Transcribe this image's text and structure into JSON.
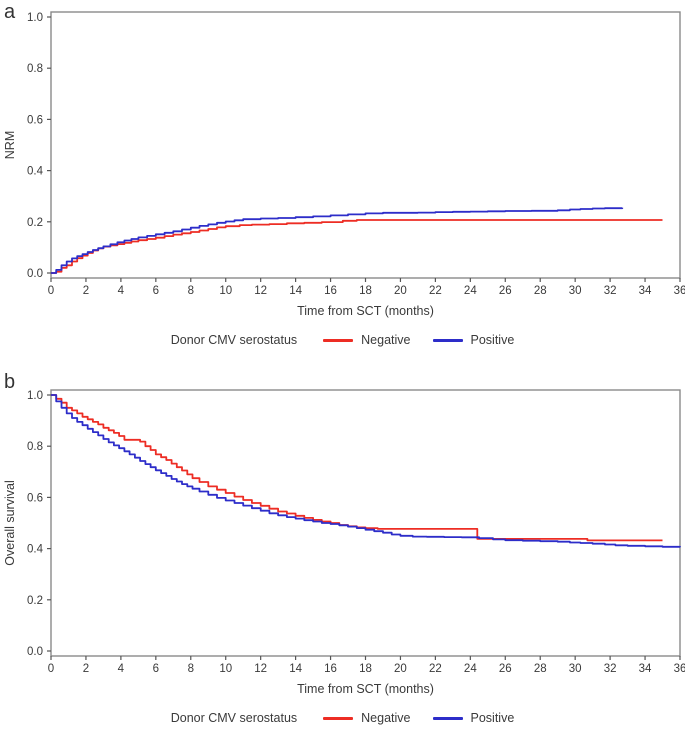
{
  "meta": {
    "background": "#ffffff"
  },
  "chart_data": [
    {
      "panel_label": "a",
      "type": "line",
      "step": true,
      "xlabel": "Time from SCT (months)",
      "ylabel": "NRM",
      "legend_title": "Donor CMV serostatus",
      "legend_position": "bottom",
      "grid": false,
      "xlim": [
        0,
        36
      ],
      "ylim": [
        0.0,
        1.0
      ],
      "xticks": [
        0,
        2,
        4,
        6,
        8,
        10,
        12,
        14,
        16,
        18,
        20,
        22,
        24,
        26,
        28,
        30,
        32,
        34,
        36
      ],
      "yticks": [
        "0.0",
        "0.2",
        "0.4",
        "0.6",
        "0.8",
        "1.0"
      ],
      "series": [
        {
          "name": "Negative",
          "color": "#ed2d24",
          "points": [
            [
              0,
              0
            ],
            [
              0.3,
              0.005
            ],
            [
              0.6,
              0.02
            ],
            [
              0.9,
              0.03
            ],
            [
              1.2,
              0.045
            ],
            [
              1.5,
              0.058
            ],
            [
              1.8,
              0.068
            ],
            [
              2.1,
              0.078
            ],
            [
              2.4,
              0.088
            ],
            [
              2.7,
              0.096
            ],
            [
              3,
              0.103
            ],
            [
              3.4,
              0.108
            ],
            [
              3.8,
              0.113
            ],
            [
              4.2,
              0.118
            ],
            [
              4.6,
              0.123
            ],
            [
              5,
              0.128
            ],
            [
              5.5,
              0.133
            ],
            [
              6,
              0.138
            ],
            [
              6.5,
              0.144
            ],
            [
              7,
              0.15
            ],
            [
              7.5,
              0.155
            ],
            [
              8,
              0.16
            ],
            [
              8.5,
              0.166
            ],
            [
              9,
              0.172
            ],
            [
              9.5,
              0.178
            ],
            [
              10,
              0.183
            ],
            [
              10.8,
              0.187
            ],
            [
              11.5,
              0.189
            ],
            [
              12.5,
              0.191
            ],
            [
              13.5,
              0.194
            ],
            [
              14.5,
              0.196
            ],
            [
              15.5,
              0.199
            ],
            [
              16.7,
              0.204
            ],
            [
              17.5,
              0.207
            ],
            [
              35,
              0.207
            ]
          ]
        },
        {
          "name": "Positive",
          "color": "#2d2dc9",
          "points": [
            [
              0,
              0
            ],
            [
              0.3,
              0.012
            ],
            [
              0.6,
              0.03
            ],
            [
              0.9,
              0.045
            ],
            [
              1.2,
              0.057
            ],
            [
              1.5,
              0.066
            ],
            [
              1.8,
              0.074
            ],
            [
              2.1,
              0.082
            ],
            [
              2.4,
              0.09
            ],
            [
              2.7,
              0.097
            ],
            [
              3,
              0.104
            ],
            [
              3.4,
              0.112
            ],
            [
              3.8,
              0.12
            ],
            [
              4.2,
              0.127
            ],
            [
              4.6,
              0.133
            ],
            [
              5,
              0.139
            ],
            [
              5.5,
              0.145
            ],
            [
              6,
              0.151
            ],
            [
              6.5,
              0.157
            ],
            [
              7,
              0.163
            ],
            [
              7.5,
              0.17
            ],
            [
              8,
              0.177
            ],
            [
              8.5,
              0.184
            ],
            [
              9,
              0.19
            ],
            [
              9.5,
              0.196
            ],
            [
              10,
              0.201
            ],
            [
              10.5,
              0.206
            ],
            [
              11,
              0.21
            ],
            [
              12,
              0.213
            ],
            [
              13,
              0.215
            ],
            [
              14,
              0.218
            ],
            [
              15,
              0.221
            ],
            [
              16,
              0.225
            ],
            [
              17,
              0.229
            ],
            [
              18,
              0.233
            ],
            [
              19,
              0.235
            ],
            [
              21,
              0.236
            ],
            [
              22,
              0.238
            ],
            [
              23,
              0.239
            ],
            [
              24,
              0.24
            ],
            [
              25,
              0.241
            ],
            [
              26,
              0.242
            ],
            [
              27.5,
              0.243
            ],
            [
              29,
              0.245
            ],
            [
              29.7,
              0.248
            ],
            [
              30.3,
              0.25
            ],
            [
              31,
              0.252
            ],
            [
              31.7,
              0.253
            ],
            [
              32.7,
              0.255
            ]
          ]
        }
      ]
    },
    {
      "panel_label": "b",
      "type": "line",
      "step": true,
      "xlabel": "Time from SCT (months)",
      "ylabel": "Overall survival",
      "legend_title": "Donor CMV serostatus",
      "legend_position": "bottom",
      "grid": false,
      "xlim": [
        0,
        36
      ],
      "ylim": [
        0.0,
        1.0
      ],
      "xticks": [
        0,
        2,
        4,
        6,
        8,
        10,
        12,
        14,
        16,
        18,
        20,
        22,
        24,
        26,
        28,
        30,
        32,
        34,
        36
      ],
      "yticks": [
        "0.0",
        "0.2",
        "0.4",
        "0.6",
        "0.8",
        "1.0"
      ],
      "series": [
        {
          "name": "Negative",
          "color": "#ed2d24",
          "points": [
            [
              0,
              1.0
            ],
            [
              0.3,
              0.985
            ],
            [
              0.6,
              0.97
            ],
            [
              0.9,
              0.95
            ],
            [
              1.2,
              0.94
            ],
            [
              1.5,
              0.928
            ],
            [
              1.8,
              0.915
            ],
            [
              2.1,
              0.905
            ],
            [
              2.4,
              0.895
            ],
            [
              2.7,
              0.885
            ],
            [
              3,
              0.872
            ],
            [
              3.3,
              0.862
            ],
            [
              3.6,
              0.852
            ],
            [
              3.9,
              0.84
            ],
            [
              4.2,
              0.825
            ],
            [
              5.1,
              0.818
            ],
            [
              5.4,
              0.8
            ],
            [
              5.7,
              0.785
            ],
            [
              6,
              0.768
            ],
            [
              6.3,
              0.757
            ],
            [
              6.6,
              0.746
            ],
            [
              6.9,
              0.732
            ],
            [
              7.2,
              0.718
            ],
            [
              7.5,
              0.705
            ],
            [
              7.8,
              0.69
            ],
            [
              8.1,
              0.675
            ],
            [
              8.5,
              0.66
            ],
            [
              9,
              0.643
            ],
            [
              9.5,
              0.63
            ],
            [
              10,
              0.617
            ],
            [
              10.5,
              0.603
            ],
            [
              11,
              0.59
            ],
            [
              11.5,
              0.578
            ],
            [
              12,
              0.567
            ],
            [
              12.5,
              0.556
            ],
            [
              13,
              0.545
            ],
            [
              13.5,
              0.537
            ],
            [
              14,
              0.528
            ],
            [
              14.5,
              0.52
            ],
            [
              15,
              0.512
            ],
            [
              15.5,
              0.506
            ],
            [
              16,
              0.5
            ],
            [
              16.5,
              0.492
            ],
            [
              17,
              0.487
            ],
            [
              17.5,
              0.483
            ],
            [
              18,
              0.48
            ],
            [
              18.7,
              0.477
            ],
            [
              24.2,
              0.477
            ],
            [
              24.4,
              0.438
            ],
            [
              30.5,
              0.438
            ],
            [
              30.7,
              0.432
            ],
            [
              35,
              0.432
            ]
          ]
        },
        {
          "name": "Positive",
          "color": "#2d2dc9",
          "points": [
            [
              0,
              1.0
            ],
            [
              0.3,
              0.975
            ],
            [
              0.6,
              0.95
            ],
            [
              0.9,
              0.928
            ],
            [
              1.2,
              0.91
            ],
            [
              1.5,
              0.895
            ],
            [
              1.8,
              0.882
            ],
            [
              2.1,
              0.868
            ],
            [
              2.4,
              0.855
            ],
            [
              2.7,
              0.842
            ],
            [
              3,
              0.828
            ],
            [
              3.3,
              0.815
            ],
            [
              3.6,
              0.803
            ],
            [
              3.9,
              0.792
            ],
            [
              4.2,
              0.78
            ],
            [
              4.5,
              0.768
            ],
            [
              4.8,
              0.755
            ],
            [
              5.1,
              0.742
            ],
            [
              5.4,
              0.73
            ],
            [
              5.7,
              0.718
            ],
            [
              6,
              0.706
            ],
            [
              6.3,
              0.695
            ],
            [
              6.6,
              0.684
            ],
            [
              6.9,
              0.672
            ],
            [
              7.2,
              0.662
            ],
            [
              7.5,
              0.652
            ],
            [
              7.8,
              0.643
            ],
            [
              8.1,
              0.634
            ],
            [
              8.5,
              0.623
            ],
            [
              9,
              0.61
            ],
            [
              9.5,
              0.598
            ],
            [
              10,
              0.588
            ],
            [
              10.5,
              0.578
            ],
            [
              11,
              0.568
            ],
            [
              11.5,
              0.558
            ],
            [
              12,
              0.548
            ],
            [
              12.5,
              0.538
            ],
            [
              13,
              0.53
            ],
            [
              13.5,
              0.523
            ],
            [
              14,
              0.517
            ],
            [
              14.5,
              0.511
            ],
            [
              15,
              0.506
            ],
            [
              15.5,
              0.5
            ],
            [
              16,
              0.496
            ],
            [
              16.5,
              0.491
            ],
            [
              17,
              0.486
            ],
            [
              17.5,
              0.48
            ],
            [
              18,
              0.474
            ],
            [
              18.5,
              0.468
            ],
            [
              19,
              0.462
            ],
            [
              19.5,
              0.455
            ],
            [
              20,
              0.45
            ],
            [
              20.7,
              0.447
            ],
            [
              21.5,
              0.446
            ],
            [
              22.5,
              0.445
            ],
            [
              23.5,
              0.444
            ],
            [
              24.5,
              0.441
            ],
            [
              25.3,
              0.436
            ],
            [
              26,
              0.433
            ],
            [
              27,
              0.431
            ],
            [
              28,
              0.429
            ],
            [
              29,
              0.427
            ],
            [
              29.7,
              0.424
            ],
            [
              30.3,
              0.422
            ],
            [
              31,
              0.419
            ],
            [
              31.7,
              0.416
            ],
            [
              32.3,
              0.413
            ],
            [
              33,
              0.411
            ],
            [
              34,
              0.409
            ],
            [
              35,
              0.407
            ],
            [
              36,
              0.405
            ]
          ]
        }
      ]
    }
  ]
}
